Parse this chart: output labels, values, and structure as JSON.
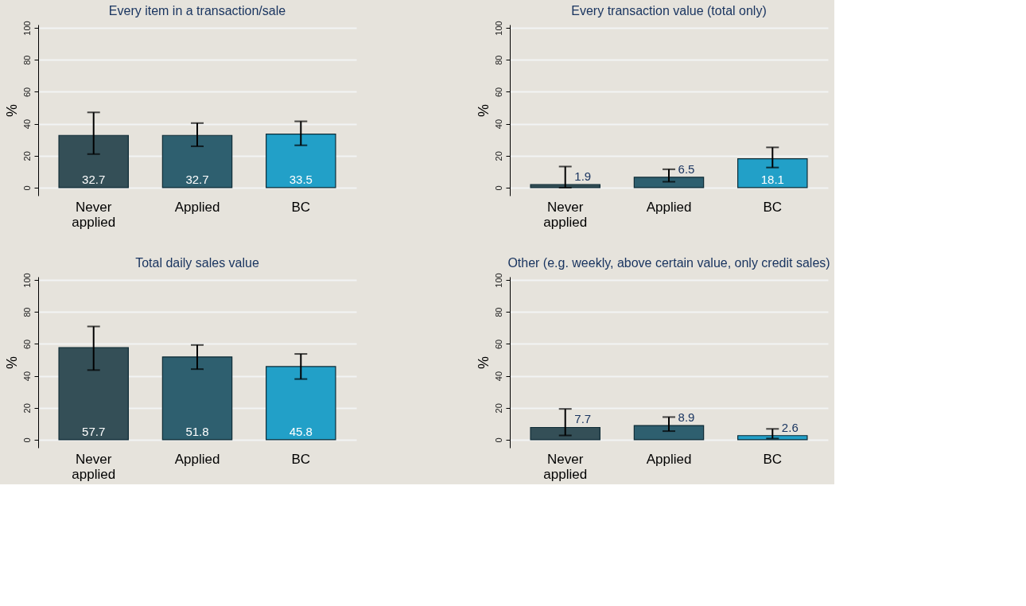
{
  "chart_data": [
    {
      "type": "bar",
      "title": "Every item in a transaction/sale",
      "ylabel": "%",
      "categories": [
        "Never applied",
        "Applied",
        "BC"
      ],
      "values": [
        32.7,
        32.7,
        33.5
      ],
      "colors": [
        "#344f57",
        "#2e5f6f",
        "#22a0c8"
      ],
      "errors": [
        [
          21.0,
          47.1
        ],
        [
          25.9,
          40.4
        ],
        [
          26.5,
          41.5
        ]
      ],
      "ylim": [
        -5,
        102
      ],
      "yticks": [
        0,
        20,
        40,
        60,
        80,
        100
      ],
      "grid": "y",
      "data_labels": true
    },
    {
      "type": "bar",
      "title": "Every transaction value (total only)",
      "ylabel": "%",
      "categories": [
        "Never applied",
        "Applied",
        "BC"
      ],
      "values": [
        1.9,
        6.5,
        18.1
      ],
      "colors": [
        "#344f57",
        "#2e5f6f",
        "#22a0c8"
      ],
      "errors": [
        [
          0.0,
          13.2
        ],
        [
          3.7,
          11.5
        ],
        [
          12.6,
          25.2
        ]
      ],
      "ylim": [
        -5,
        102
      ],
      "yticks": [
        0,
        20,
        40,
        60,
        80,
        100
      ],
      "grid": "y",
      "data_labels": true
    },
    {
      "type": "bar",
      "title": "Total daily sales value",
      "ylabel": "%",
      "categories": [
        "Never applied",
        "Applied",
        "BC"
      ],
      "values": [
        57.7,
        51.8,
        45.8
      ],
      "colors": [
        "#344f57",
        "#2e5f6f",
        "#22a0c8"
      ],
      "errors": [
        [
          43.6,
          70.9
        ],
        [
          44.2,
          59.3
        ],
        [
          38.0,
          53.7
        ]
      ],
      "ylim": [
        -5,
        102
      ],
      "yticks": [
        0,
        20,
        40,
        60,
        80,
        100
      ],
      "grid": "y",
      "data_labels": true
    },
    {
      "type": "bar",
      "title": "Other (e.g. weekly, above certain value, only credit sales)",
      "ylabel": "%",
      "categories": [
        "Never applied",
        "Applied",
        "BC"
      ],
      "values": [
        7.7,
        8.9,
        2.6
      ],
      "colors": [
        "#344f57",
        "#2e5f6f",
        "#22a0c8"
      ],
      "errors": [
        [
          2.7,
          19.3
        ],
        [
          5.4,
          14.2
        ],
        [
          0.8,
          6.8
        ]
      ],
      "ylim": [
        -5,
        102
      ],
      "yticks": [
        0,
        20,
        40,
        60,
        80,
        100
      ],
      "grid": "y",
      "data_labels": true
    }
  ]
}
